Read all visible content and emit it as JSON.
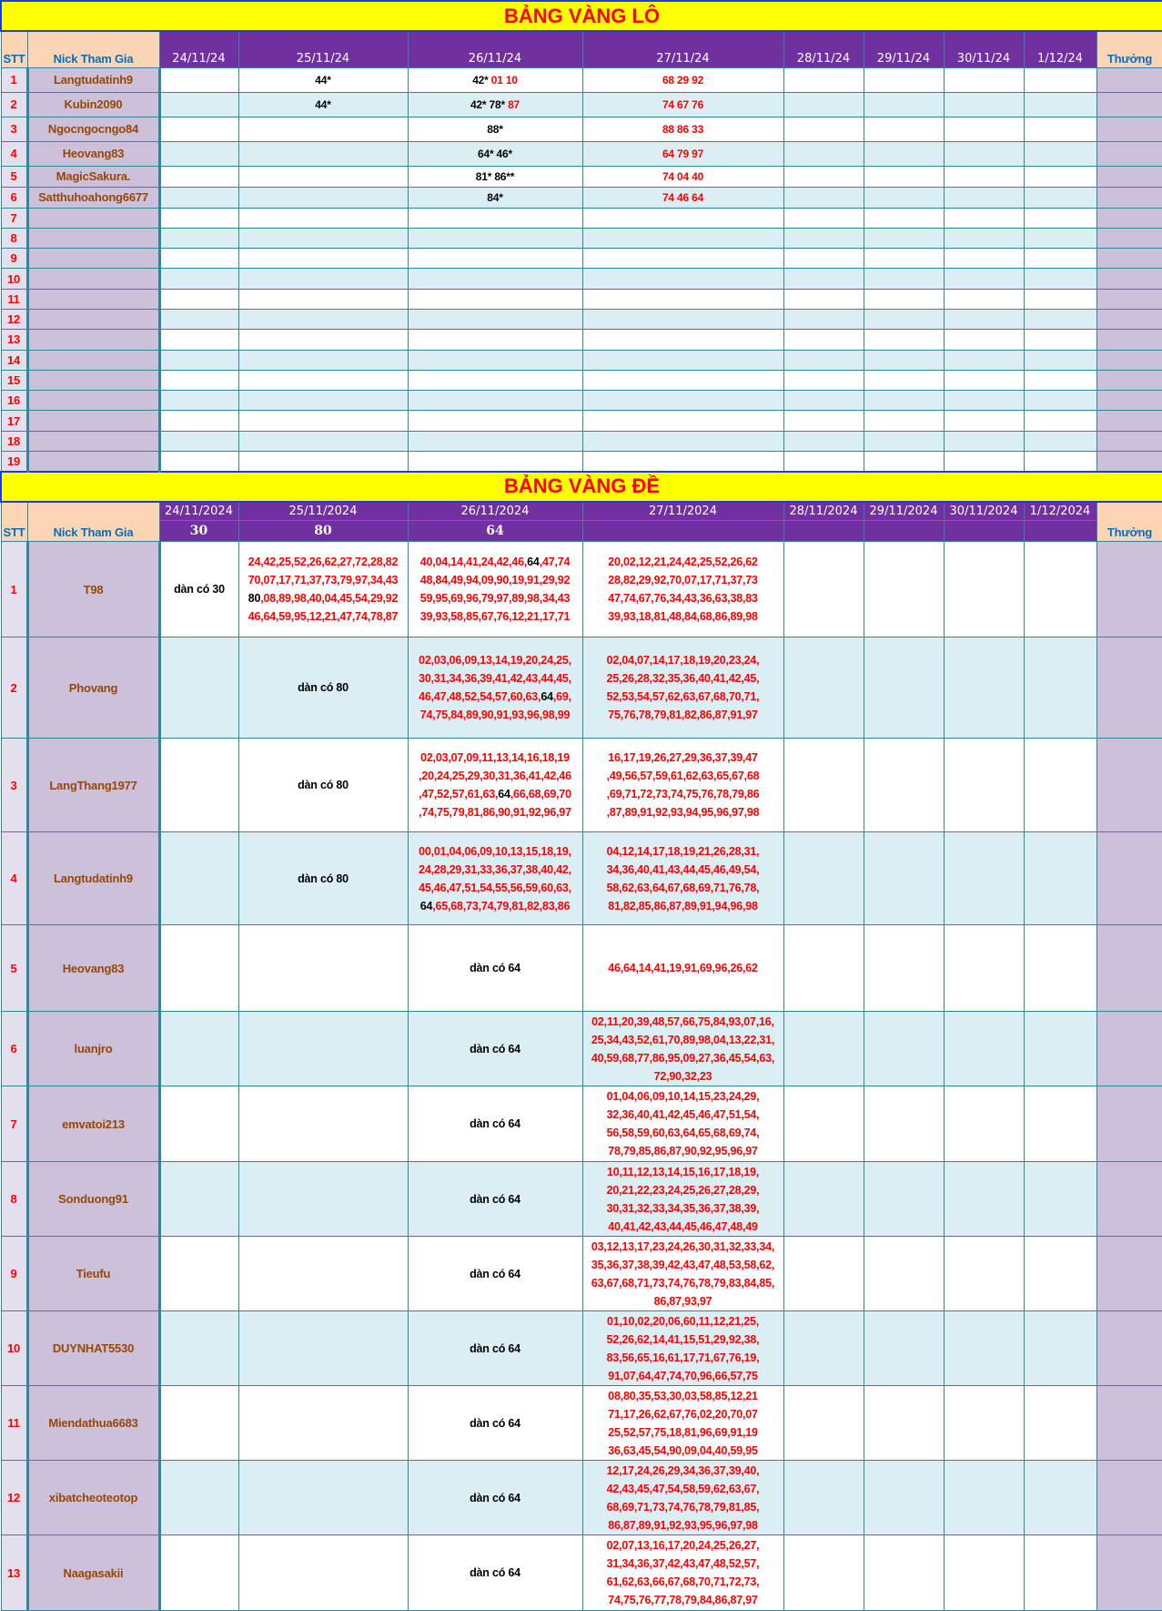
{
  "colors": {
    "title_bg": "#FFFF00",
    "title_text": "#FF0000",
    "header_bg": "#7030A0",
    "header_peach": "#FCD5B4",
    "nick_bg": "#CCC0DA",
    "alt_row": "#DAEEF3",
    "border": "#31869B",
    "pick_red": "#FF0000"
  },
  "lo": {
    "title": "BẢNG VÀNG LÔ",
    "stt_label": "STT",
    "nick_label": "Nick Tham Gia",
    "reward_label": "Thưởng",
    "dates": [
      "24/11/24",
      "25/11/24",
      "26/11/24",
      "27/11/24",
      "28/11/24",
      "29/11/24",
      "30/11/24",
      "1/12/24"
    ],
    "rows": [
      {
        "stt": "1",
        "nick": "Langtudatinh9",
        "cells": [
          null,
          {
            "black": "44*"
          },
          {
            "black": "42*",
            "red": "01 10"
          },
          {
            "red": "68 29 92"
          },
          null,
          null,
          null,
          null
        ]
      },
      {
        "stt": "2",
        "nick": "Kubin2090",
        "cells": [
          null,
          {
            "black": "44*"
          },
          {
            "black": "42* 78*",
            "red": "87"
          },
          {
            "red": "74 67 76"
          },
          null,
          null,
          null,
          null
        ]
      },
      {
        "stt": "3",
        "nick": "Ngocngocngo84",
        "cells": [
          null,
          null,
          {
            "black": "88*"
          },
          {
            "red": "88 86 33"
          },
          null,
          null,
          null,
          null
        ]
      },
      {
        "stt": "4",
        "nick": "Heovang83",
        "cells": [
          null,
          null,
          {
            "black": "64* 46*"
          },
          {
            "red": "64 79 97"
          },
          null,
          null,
          null,
          null
        ]
      },
      {
        "stt": "5",
        "nick": "MagicSakura.",
        "cells": [
          null,
          null,
          {
            "black": "81* 86**"
          },
          {
            "red": "74 04 40"
          },
          null,
          null,
          null,
          null
        ]
      },
      {
        "stt": "6",
        "nick": "Satthuhoahong6677",
        "cells": [
          null,
          null,
          {
            "black": "84*"
          },
          {
            "red": "74 46 64"
          },
          null,
          null,
          null,
          null
        ]
      },
      {
        "stt": "7",
        "nick": ""
      },
      {
        "stt": "8",
        "nick": ""
      },
      {
        "stt": "9",
        "nick": ""
      },
      {
        "stt": "10",
        "nick": ""
      },
      {
        "stt": "11",
        "nick": ""
      },
      {
        "stt": "12",
        "nick": ""
      },
      {
        "stt": "13",
        "nick": ""
      },
      {
        "stt": "14",
        "nick": ""
      },
      {
        "stt": "15",
        "nick": ""
      },
      {
        "stt": "16",
        "nick": ""
      },
      {
        "stt": "17",
        "nick": ""
      },
      {
        "stt": "18",
        "nick": ""
      },
      {
        "stt": "19",
        "nick": ""
      }
    ]
  },
  "de": {
    "title": "BẢNG VÀNG ĐỀ",
    "stt_label": "STT",
    "nick_label": "Nick Tham Gia",
    "reward_label": "Thưởng",
    "dates": [
      "24/11/2024",
      "25/11/2024",
      "26/11/2024",
      "27/11/2024",
      "28/11/2024",
      "29/11/2024",
      "30/11/2024",
      "1/12/2024"
    ],
    "results": [
      "30",
      "80",
      "64",
      "",
      "",
      "",
      "",
      ""
    ],
    "rows": [
      {
        "stt": "1",
        "nick": "T98",
        "cells": [
          {
            "text": "dàn có 30"
          },
          {
            "lines": [
              "24,42,25,52,26,62,27,72,28,82",
              "70,07,17,71,37,73,79,97,34,43",
              {
                "pre": "",
                "hit": "80",
                "post": ",08,89,98,40,04,45,54,29,92"
              },
              "46,64,59,95,12,21,47,74,78,87"
            ]
          },
          {
            "lines": [
              {
                "pre": "40,04,14,41,24,42,46,",
                "hit": "64",
                "post": ",47,74"
              },
              "48,84,49,94,09,90,19,91,29,92",
              "59,95,69,96,79,97,89,98,34,43",
              "39,93,58,85,67,76,12,21,17,71"
            ]
          },
          {
            "lines": [
              "20,02,12,21,24,42,25,52,26,62",
              "28,82,29,92,70,07,17,71,37,73",
              "47,74,67,76,34,43,36,63,38,83",
              "39,93,18,81,48,84,68,86,89,98"
            ]
          }
        ]
      },
      {
        "stt": "2",
        "nick": "Phovang",
        "cells": [
          null,
          {
            "text": "dàn có 80"
          },
          {
            "lines": [
              "02,03,06,09,13,14,19,20,24,25,",
              "30,31,34,36,39,41,42,43,44,45,",
              {
                "pre": "46,47,48,52,54,57,60,63,",
                "hit": "64",
                "post": ",69,"
              },
              "74,75,84,89,90,91,93,96,98,99"
            ]
          },
          {
            "lines": [
              "02,04,07,14,17,18,19,20,23,24,",
              "25,26,28,32,35,36,40,41,42,45,",
              "52,53,54,57,62,63,67,68,70,71,",
              "75,76,78,79,81,82,86,87,91,97"
            ]
          }
        ]
      },
      {
        "stt": "3",
        "nick": "LangThang1977",
        "cells": [
          null,
          {
            "text": "dàn có 80"
          },
          {
            "lines": [
              "02,03,07,09,11,13,14,16,18,19",
              ",20,24,25,29,30,31,36,41,42,46",
              {
                "pre": ",47,52,57,61,63,",
                "hit": "64",
                "post": ",66,68,69,70"
              },
              ",74,75,79,81,86,90,91,92,96,97"
            ]
          },
          {
            "lines": [
              "16,17,19,26,27,29,36,37,39,47",
              ",49,56,57,59,61,62,63,65,67,68",
              ",69,71,72,73,74,75,76,78,79,86",
              ",87,89,91,92,93,94,95,96,97,98"
            ]
          }
        ]
      },
      {
        "stt": "4",
        "nick": "Langtudatinh9",
        "cells": [
          null,
          {
            "text": "dàn có 80"
          },
          {
            "lines": [
              "00,01,04,06,09,10,13,15,18,19,",
              "24,28,29,31,33,36,37,38,40,42,",
              "45,46,47,51,54,55,56,59,60,63,",
              {
                "pre": "",
                "hit": "64",
                "post": ",65,68,73,74,79,81,82,83,86"
              }
            ]
          },
          {
            "lines": [
              "04,12,14,17,18,19,21,26,28,31,",
              "34,36,40,41,43,44,45,46,49,54,",
              "58,62,63,64,67,68,69,71,76,78,",
              "81,82,85,86,87,89,91,94,96,98"
            ]
          }
        ]
      },
      {
        "stt": "5",
        "nick": "Heovang83",
        "cells": [
          null,
          null,
          {
            "text": "dàn có 64"
          },
          {
            "lines": [
              "46,64,14,41,19,91,69,96,26,62"
            ]
          }
        ]
      },
      {
        "stt": "6",
        "nick": "luanjro",
        "cells": [
          null,
          null,
          {
            "text": "dàn có 64"
          },
          {
            "lines": [
              "02,11,20,39,48,57,66,75,84,93,07,16,",
              "25,34,43,52,61,70,89,98,04,13,22,31,",
              "40,59,68,77,86,95,09,27,36,45,54,63,",
              "72,90,32,23"
            ]
          }
        ]
      },
      {
        "stt": "7",
        "nick": "emvatoi213",
        "cells": [
          null,
          null,
          {
            "text": "dàn có 64"
          },
          {
            "lines": [
              "01,04,06,09,10,14,15,23,24,29,",
              "32,36,40,41,42,45,46,47,51,54,",
              "56,58,59,60,63,64,65,68,69,74,",
              "78,79,85,86,87,90,92,95,96,97"
            ]
          }
        ]
      },
      {
        "stt": "8",
        "nick": "Sonduong91",
        "cells": [
          null,
          null,
          {
            "text": "dàn có 64"
          },
          {
            "lines": [
              "10,11,12,13,14,15,16,17,18,19,",
              "20,21,22,23,24,25,26,27,28,29,",
              "30,31,32,33,34,35,36,37,38,39,",
              "40,41,42,43,44,45,46,47,48,49"
            ]
          }
        ]
      },
      {
        "stt": "9",
        "nick": "Tieufu",
        "cells": [
          null,
          null,
          {
            "text": "dàn có 64"
          },
          {
            "lines": [
              "03,12,13,17,23,24,26,30,31,32,33,34,",
              "35,36,37,38,39,42,43,47,48,53,58,62,",
              "63,67,68,71,73,74,76,78,79,83,84,85,",
              "86,87,93,97"
            ]
          }
        ]
      },
      {
        "stt": "10",
        "nick": "DUYNHAT5530",
        "cells": [
          null,
          null,
          {
            "text": "dàn có 64"
          },
          {
            "lines": [
              "01,10,02,20,06,60,11,12,21,25,",
              "52,26,62,14,41,15,51,29,92,38,",
              "83,56,65,16,61,17,71,67,76,19,",
              "91,07,64,47,74,70,96,66,57,75"
            ]
          }
        ]
      },
      {
        "stt": "11",
        "nick": "Miendathua6683",
        "cells": [
          null,
          null,
          {
            "text": "dàn có 64"
          },
          {
            "lines": [
              "08,80,35,53,30,03,58,85,12,21",
              "71,17,26,62,67,76,02,20,70,07",
              "25,52,57,75,18,81,96,69,91,19",
              "36,63,45,54,90,09,04,40,59,95"
            ]
          }
        ]
      },
      {
        "stt": "12",
        "nick": "xibatcheoteotop",
        "cells": [
          null,
          null,
          {
            "text": "dàn có 64"
          },
          {
            "lines": [
              "12,17,24,26,29,34,36,37,39,40,",
              "42,43,45,47,54,58,59,62,63,67,",
              "68,69,71,73,74,76,78,79,81,85,",
              "86,87,89,91,92,93,95,96,97,98"
            ]
          }
        ]
      },
      {
        "stt": "13",
        "nick": "Naagasakii",
        "cells": [
          null,
          null,
          {
            "text": "dàn có 64"
          },
          {
            "lines": [
              "02,07,13,16,17,20,24,25,26,27,",
              "31,34,36,37,42,43,47,48,52,57,",
              "61,62,63,66,67,68,70,71,72,73,",
              "74,75,76,77,78,79,84,86,87,97"
            ]
          }
        ]
      }
    ]
  }
}
